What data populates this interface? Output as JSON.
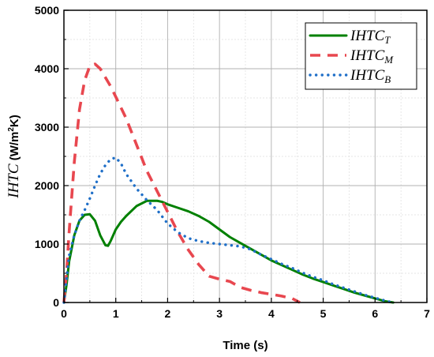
{
  "chart_data": {
    "type": "line",
    "xlabel": "Time (s)",
    "ylabel": {
      "italic": "IHTC",
      "unit_prefix": " (W/m",
      "unit_sup": "2",
      "unit_suffix": "K)"
    },
    "xlim": [
      0,
      7
    ],
    "ylim": [
      0,
      5000
    ],
    "xticks": [
      0,
      1,
      2,
      3,
      4,
      5,
      6,
      7
    ],
    "yticks": [
      0,
      1000,
      2000,
      3000,
      4000,
      5000
    ],
    "grid": true,
    "legend_position": "top-right",
    "series": [
      {
        "name": "IHTC_T",
        "label_main": "IHTC",
        "label_sub": "T",
        "color": "#008000",
        "style": "solid",
        "x": [
          0,
          0.05,
          0.1,
          0.2,
          0.3,
          0.4,
          0.5,
          0.6,
          0.7,
          0.8,
          0.85,
          0.9,
          1.0,
          1.1,
          1.2,
          1.4,
          1.6,
          1.8,
          1.9,
          2.0,
          2.2,
          2.4,
          2.6,
          2.8,
          3.0,
          3.2,
          3.4,
          3.6,
          3.8,
          4.0,
          4.2,
          4.4,
          4.6,
          4.8,
          5.0,
          5.2,
          5.4,
          5.6,
          5.8,
          6.0,
          6.2,
          6.35
        ],
        "y": [
          0,
          300,
          700,
          1150,
          1400,
          1500,
          1510,
          1400,
          1150,
          980,
          970,
          1050,
          1250,
          1380,
          1480,
          1650,
          1740,
          1740,
          1720,
          1680,
          1620,
          1560,
          1480,
          1380,
          1250,
          1120,
          1020,
          920,
          820,
          720,
          640,
          560,
          480,
          410,
          350,
          290,
          230,
          170,
          120,
          70,
          20,
          0
        ]
      },
      {
        "name": "IHTC_M",
        "label_main": "IHTC",
        "label_sub": "M",
        "color": "#e8474f",
        "style": "dashed",
        "x": [
          0,
          0.05,
          0.1,
          0.2,
          0.3,
          0.4,
          0.5,
          0.6,
          0.7,
          0.8,
          0.9,
          1.0,
          1.2,
          1.4,
          1.6,
          1.8,
          2.0,
          2.2,
          2.4,
          2.6,
          2.8,
          3.0,
          3.2,
          3.4,
          3.6,
          3.8,
          4.0,
          4.2,
          4.4,
          4.55
        ],
        "y": [
          0,
          500,
          1200,
          2400,
          3300,
          3800,
          4050,
          4080,
          4000,
          3850,
          3700,
          3520,
          3150,
          2700,
          2250,
          1900,
          1550,
          1200,
          900,
          650,
          450,
          400,
          360,
          260,
          210,
          170,
          140,
          110,
          70,
          0
        ]
      },
      {
        "name": "IHTC_B",
        "label_main": "IHTC",
        "label_sub": "B",
        "color": "#1f6fc8",
        "style": "dotted",
        "x": [
          0,
          0.05,
          0.1,
          0.2,
          0.3,
          0.4,
          0.5,
          0.6,
          0.7,
          0.8,
          0.9,
          1.0,
          1.1,
          1.2,
          1.4,
          1.6,
          1.8,
          2.0,
          2.2,
          2.4,
          2.6,
          2.8,
          3.0,
          3.2,
          3.4,
          3.6,
          3.8,
          4.0,
          4.2,
          4.4,
          4.6,
          4.8,
          5.0,
          5.2,
          5.4,
          5.6,
          5.8,
          6.0,
          6.2,
          6.35
        ],
        "y": [
          0,
          400,
          800,
          1150,
          1400,
          1580,
          1780,
          2000,
          2200,
          2350,
          2450,
          2480,
          2380,
          2200,
          1950,
          1750,
          1580,
          1350,
          1200,
          1100,
          1050,
          1020,
          1000,
          980,
          960,
          910,
          820,
          740,
          660,
          590,
          510,
          440,
          380,
          310,
          250,
          190,
          130,
          80,
          30,
          0
        ]
      }
    ]
  }
}
